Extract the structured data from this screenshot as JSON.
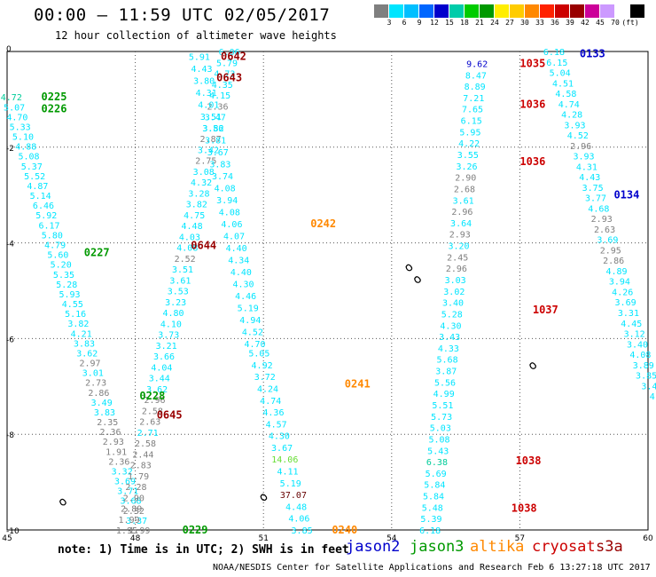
{
  "header": {
    "title": "00:00 – 11:59 UTC 02/05/2017",
    "subtitle": "12 hour collection of altimeter wave heights"
  },
  "color_scale": {
    "colors": [
      "#7f7f7f",
      "#00e5ff",
      "#00bfff",
      "#0066ff",
      "#0000cc",
      "#00ccaa",
      "#00cc00",
      "#009900",
      "#ffee00",
      "#ffcc00",
      "#ff8800",
      "#ff2200",
      "#cc0000",
      "#990000",
      "#cc0099",
      "#cc99ff",
      "#ffffff",
      "#000000"
    ],
    "labels": [
      "3",
      "6",
      "9",
      "12",
      "15",
      "18",
      "21",
      "24",
      "27",
      "30",
      "33",
      "36",
      "39",
      "42",
      "45",
      "70",
      "(ft)"
    ]
  },
  "axes": {
    "x_ticks": [
      "45",
      "48",
      "51",
      "54",
      "57",
      "60"
    ],
    "y_ticks": [
      "0",
      "-2",
      "-4",
      "-6",
      "-8",
      "-10"
    ]
  },
  "legend": [
    {
      "name": "jason2",
      "color": "#0000cc"
    },
    {
      "name": "jason3",
      "color": "#009900"
    },
    {
      "name": "altika",
      "color": "#ff8800"
    },
    {
      "name": "cryosat",
      "color": "#cc0000"
    },
    {
      "name": "s3a",
      "color": "#990000"
    }
  ],
  "note": "note: 1) Time is in UTC; 2) SWH is in feet",
  "credit": "NOAA/NESDIS Center for Satellite Applications and Research   Feb  6 13:27:18 UTC 2017",
  "time_labels": [
    {
      "text": "0225",
      "lon": 45.8,
      "lat": -0.95,
      "color": "#009900"
    },
    {
      "text": "0226",
      "lon": 45.8,
      "lat": -1.2,
      "color": "#009900"
    },
    {
      "text": "0227",
      "lon": 46.8,
      "lat": -4.2,
      "color": "#009900"
    },
    {
      "text": "0228",
      "lon": 48.1,
      "lat": -7.2,
      "color": "#009900"
    },
    {
      "text": "0229",
      "lon": 49.1,
      "lat": -10.0,
      "color": "#009900"
    },
    {
      "text": "0642",
      "lon": 50.0,
      "lat": -0.1,
      "color": "#990000"
    },
    {
      "text": "0643",
      "lon": 49.9,
      "lat": -0.55,
      "color": "#990000"
    },
    {
      "text": "0644",
      "lon": 49.3,
      "lat": -4.05,
      "color": "#990000"
    },
    {
      "text": "0645",
      "lon": 48.5,
      "lat": -7.6,
      "color": "#990000"
    },
    {
      "text": "0242",
      "lon": 52.1,
      "lat": -3.6,
      "color": "#ff8800"
    },
    {
      "text": "0241",
      "lon": 52.9,
      "lat": -6.95,
      "color": "#ff8800"
    },
    {
      "text": "0240",
      "lon": 52.6,
      "lat": -10.0,
      "color": "#ff8800"
    },
    {
      "text": "1035",
      "lon": 57.0,
      "lat": -0.25,
      "color": "#cc0000"
    },
    {
      "text": "1036",
      "lon": 57.0,
      "lat": -1.1,
      "color": "#cc0000"
    },
    {
      "text": "1036",
      "lon": 57.0,
      "lat": -2.3,
      "color": "#cc0000"
    },
    {
      "text": "1037",
      "lon": 57.3,
      "lat": -5.4,
      "color": "#cc0000"
    },
    {
      "text": "1038",
      "lon": 56.9,
      "lat": -8.55,
      "color": "#cc0000"
    },
    {
      "text": "1038",
      "lon": 56.8,
      "lat": -9.55,
      "color": "#cc0000"
    },
    {
      "text": "0133",
      "lon": 58.4,
      "lat": -0.05,
      "color": "#0000cc"
    },
    {
      "text": "0134",
      "lon": 59.2,
      "lat": -3.0,
      "color": "#0000cc"
    }
  ],
  "tracks": [
    {
      "name": "jason3-track",
      "start": [
        45.1,
        -0.95
      ],
      "end": [
        48.1,
        -10.0
      ],
      "rows": [
        {
          "v": "4.72",
          "c": "#00cc99"
        },
        {
          "v": "5.07",
          "c": "#00e5ff"
        },
        {
          "v": "4.70",
          "c": "#00e5ff"
        },
        {
          "v": "5.33",
          "c": "#00e5ff"
        },
        {
          "v": "5.10",
          "c": "#00e5ff"
        },
        {
          "v": "4.88",
          "c": "#00e5ff"
        },
        {
          "v": "5.08",
          "c": "#00e5ff"
        },
        {
          "v": "5.37",
          "c": "#00e5ff"
        },
        {
          "v": "5.52",
          "c": "#00e5ff"
        },
        {
          "v": "4.87",
          "c": "#00e5ff"
        },
        {
          "v": "5.14",
          "c": "#00e5ff"
        },
        {
          "v": "6.46",
          "c": "#00e5ff"
        },
        {
          "v": "5.92",
          "c": "#00e5ff"
        },
        {
          "v": "6.17",
          "c": "#00e5ff"
        },
        {
          "v": "5.80",
          "c": "#00e5ff"
        },
        {
          "v": "4.79",
          "c": "#00e5ff"
        },
        {
          "v": "5.60",
          "c": "#00e5ff"
        },
        {
          "v": "5.20",
          "c": "#00e5ff"
        },
        {
          "v": "5.35",
          "c": "#00e5ff"
        },
        {
          "v": "5.28",
          "c": "#00e5ff"
        },
        {
          "v": "5.93",
          "c": "#00e5ff"
        },
        {
          "v": "4.55",
          "c": "#00e5ff"
        },
        {
          "v": "5.16",
          "c": "#00e5ff"
        },
        {
          "v": "3.82",
          "c": "#00e5ff"
        },
        {
          "v": "4.21",
          "c": "#00e5ff"
        },
        {
          "v": "3.83",
          "c": "#00e5ff"
        },
        {
          "v": "3.62",
          "c": "#00e5ff"
        },
        {
          "v": "2.97",
          "c": "#7f7f7f"
        },
        {
          "v": "3.01",
          "c": "#00e5ff"
        },
        {
          "v": "2.73",
          "c": "#7f7f7f"
        },
        {
          "v": "2.86",
          "c": "#7f7f7f"
        },
        {
          "v": "3.49",
          "c": "#00e5ff"
        },
        {
          "v": "3.83",
          "c": "#00e5ff"
        },
        {
          "v": "2.35",
          "c": "#7f7f7f"
        },
        {
          "v": "2.36",
          "c": "#7f7f7f"
        },
        {
          "v": "2.93",
          "c": "#7f7f7f"
        },
        {
          "v": "1.91",
          "c": "#7f7f7f"
        },
        {
          "v": "2.36",
          "c": "#7f7f7f"
        },
        {
          "v": "3.32",
          "c": "#00e5ff"
        },
        {
          "v": "3.69",
          "c": "#00e5ff"
        },
        {
          "v": "3.71",
          "c": "#00e5ff"
        },
        {
          "v": "3.68",
          "c": "#00e5ff"
        },
        {
          "v": "2.32",
          "c": "#7f7f7f"
        },
        {
          "v": "3.37",
          "c": "#00e5ff"
        },
        {
          "v": "1.99",
          "c": "#7f7f7f"
        }
      ]
    },
    {
      "name": "cryosat-track",
      "start": [
        50.2,
        0.0
      ],
      "end": [
        47.8,
        -10.0
      ],
      "rows": [
        {
          "v": "6.06",
          "c": "#00e5ff"
        },
        {
          "v": "5.79",
          "c": "#00e5ff"
        },
        {
          "v": "4.73",
          "c": "#00e5ff"
        },
        {
          "v": "4.35",
          "c": "#00e5ff"
        },
        {
          "v": "4.15",
          "c": "#00e5ff"
        },
        {
          "v": "2.36",
          "c": "#7f7f7f"
        },
        {
          "v": "3.47",
          "c": "#00e5ff"
        },
        {
          "v": "3.56",
          "c": "#00e5ff"
        },
        {
          "v": "2.87",
          "c": "#7f7f7f"
        },
        {
          "v": "3.42",
          "c": "#00e5ff"
        },
        {
          "v": "2.75",
          "c": "#7f7f7f"
        },
        {
          "v": "3.08",
          "c": "#00e5ff"
        },
        {
          "v": "4.32",
          "c": "#00e5ff"
        },
        {
          "v": "3.28",
          "c": "#00e5ff"
        },
        {
          "v": "3.82",
          "c": "#00e5ff"
        },
        {
          "v": "4.75",
          "c": "#00e5ff"
        },
        {
          "v": "4.48",
          "c": "#00e5ff"
        },
        {
          "v": "4.03",
          "c": "#00e5ff"
        },
        {
          "v": "4.08",
          "c": "#00e5ff"
        },
        {
          "v": "2.52",
          "c": "#7f7f7f"
        },
        {
          "v": "3.51",
          "c": "#00e5ff"
        },
        {
          "v": "3.61",
          "c": "#00e5ff"
        },
        {
          "v": "3.53",
          "c": "#00e5ff"
        },
        {
          "v": "3.23",
          "c": "#00e5ff"
        },
        {
          "v": "4.80",
          "c": "#00e5ff"
        },
        {
          "v": "4.10",
          "c": "#00e5ff"
        },
        {
          "v": "3.73",
          "c": "#00e5ff"
        },
        {
          "v": "3.21",
          "c": "#00e5ff"
        },
        {
          "v": "3.66",
          "c": "#00e5ff"
        },
        {
          "v": "4.04",
          "c": "#00e5ff"
        },
        {
          "v": "3.44",
          "c": "#00e5ff"
        },
        {
          "v": "3.62",
          "c": "#00e5ff"
        },
        {
          "v": "2.96",
          "c": "#7f7f7f"
        },
        {
          "v": "2.58",
          "c": "#7f7f7f"
        },
        {
          "v": "2.63",
          "c": "#7f7f7f"
        },
        {
          "v": "2.71",
          "c": "#00e5ff"
        },
        {
          "v": "2.58",
          "c": "#7f7f7f"
        },
        {
          "v": "2.44",
          "c": "#7f7f7f"
        },
        {
          "v": "2.83",
          "c": "#7f7f7f"
        },
        {
          "v": "1.79",
          "c": "#7f7f7f"
        },
        {
          "v": "2.28",
          "c": "#7f7f7f"
        },
        {
          "v": "2.90",
          "c": "#7f7f7f"
        },
        {
          "v": "2.89",
          "c": "#7f7f7f"
        },
        {
          "v": "1.99",
          "c": "#7f7f7f"
        },
        {
          "v": "1.95",
          "c": "#7f7f7f"
        }
      ]
    },
    {
      "name": "s3a-track",
      "start": [
        49.5,
        -0.1
      ],
      "end": [
        50.8,
        -6.1
      ],
      "rows": [
        {
          "v": "5.91",
          "c": "#00e5ff"
        },
        {
          "v": "4.43",
          "c": "#00e5ff"
        },
        {
          "v": "3.80",
          "c": "#00e5ff"
        },
        {
          "v": "4.31",
          "c": "#00e5ff"
        },
        {
          "v": "4.01",
          "c": "#00e5ff"
        },
        {
          "v": "3.51",
          "c": "#00e5ff"
        },
        {
          "v": "3.82",
          "c": "#00e5ff"
        },
        {
          "v": "3.81",
          "c": "#00e5ff"
        },
        {
          "v": "3.67",
          "c": "#00e5ff"
        },
        {
          "v": "3.83",
          "c": "#00e5ff"
        },
        {
          "v": "3.74",
          "c": "#00e5ff"
        },
        {
          "v": "4.08",
          "c": "#00e5ff"
        },
        {
          "v": "3.94",
          "c": "#00e5ff"
        },
        {
          "v": "4.08",
          "c": "#00e5ff"
        },
        {
          "v": "4.06",
          "c": "#00e5ff"
        },
        {
          "v": "4.07",
          "c": "#00e5ff"
        },
        {
          "v": "4.40",
          "c": "#00e5ff"
        },
        {
          "v": "4.34",
          "c": "#00e5ff"
        },
        {
          "v": "4.40",
          "c": "#00e5ff"
        },
        {
          "v": "4.30",
          "c": "#00e5ff"
        },
        {
          "v": "4.46",
          "c": "#00e5ff"
        },
        {
          "v": "5.19",
          "c": "#00e5ff"
        },
        {
          "v": "4.94",
          "c": "#00e5ff"
        },
        {
          "v": "4.52",
          "c": "#00e5ff"
        },
        {
          "v": "4.70",
          "c": "#00e5ff"
        }
      ]
    },
    {
      "name": "altika-track",
      "start": [
        50.9,
        -6.3
      ],
      "end": [
        51.9,
        -10.0
      ],
      "rows": [
        {
          "v": "5.05",
          "c": "#00e5ff"
        },
        {
          "v": "4.92",
          "c": "#00e5ff"
        },
        {
          "v": "3.72",
          "c": "#00e5ff"
        },
        {
          "v": "4.24",
          "c": "#00e5ff"
        },
        {
          "v": "4.74",
          "c": "#00e5ff"
        },
        {
          "v": "4.36",
          "c": "#00e5ff"
        },
        {
          "v": "4.57",
          "c": "#00e5ff"
        },
        {
          "v": "4.30",
          "c": "#00e5ff"
        },
        {
          "v": "3.67",
          "c": "#00e5ff"
        },
        {
          "v": "14.06",
          "c": "#66dd33"
        },
        {
          "v": "4.11",
          "c": "#00e5ff"
        },
        {
          "v": "5.19",
          "c": "#00e5ff"
        },
        {
          "v": "37.07",
          "c": "#660000"
        },
        {
          "v": "4.48",
          "c": "#00e5ff"
        },
        {
          "v": "4.06",
          "c": "#00e5ff"
        },
        {
          "v": "3.85",
          "c": "#00e5ff"
        }
      ]
    },
    {
      "name": "cryosat-east-track",
      "start": [
        56.0,
        -0.25
      ],
      "end": [
        54.9,
        -10.0
      ],
      "rows": [
        {
          "v": "9.62",
          "c": "#0000cc"
        },
        {
          "v": "8.47",
          "c": "#00e5ff"
        },
        {
          "v": "8.89",
          "c": "#00e5ff"
        },
        {
          "v": "7.21",
          "c": "#00e5ff"
        },
        {
          "v": "7.65",
          "c": "#00e5ff"
        },
        {
          "v": "6.15",
          "c": "#00e5ff"
        },
        {
          "v": "5.95",
          "c": "#00e5ff"
        },
        {
          "v": "4.22",
          "c": "#00e5ff"
        },
        {
          "v": "3.55",
          "c": "#00e5ff"
        },
        {
          "v": "3.26",
          "c": "#00e5ff"
        },
        {
          "v": "2.90",
          "c": "#7f7f7f"
        },
        {
          "v": "2.68",
          "c": "#7f7f7f"
        },
        {
          "v": "3.61",
          "c": "#00e5ff"
        },
        {
          "v": "2.96",
          "c": "#7f7f7f"
        },
        {
          "v": "3.64",
          "c": "#00e5ff"
        },
        {
          "v": "2.93",
          "c": "#7f7f7f"
        },
        {
          "v": "3.20",
          "c": "#00e5ff"
        },
        {
          "v": "2.45",
          "c": "#7f7f7f"
        },
        {
          "v": "2.96",
          "c": "#7f7f7f"
        },
        {
          "v": "3.03",
          "c": "#00e5ff"
        },
        {
          "v": "3.02",
          "c": "#00e5ff"
        },
        {
          "v": "3.40",
          "c": "#00e5ff"
        },
        {
          "v": "5.28",
          "c": "#00e5ff"
        },
        {
          "v": "4.30",
          "c": "#00e5ff"
        },
        {
          "v": "3.43",
          "c": "#00e5ff"
        },
        {
          "v": "4.33",
          "c": "#00e5ff"
        },
        {
          "v": "5.68",
          "c": "#00e5ff"
        },
        {
          "v": "3.87",
          "c": "#00e5ff"
        },
        {
          "v": "5.56",
          "c": "#00e5ff"
        },
        {
          "v": "4.99",
          "c": "#00e5ff"
        },
        {
          "v": "5.51",
          "c": "#00e5ff"
        },
        {
          "v": "5.73",
          "c": "#00e5ff"
        },
        {
          "v": "5.03",
          "c": "#00e5ff"
        },
        {
          "v": "5.08",
          "c": "#00e5ff"
        },
        {
          "v": "5.43",
          "c": "#00e5ff"
        },
        {
          "v": "6.38",
          "c": "#00cc99"
        },
        {
          "v": "5.69",
          "c": "#00e5ff"
        },
        {
          "v": "5.84",
          "c": "#00e5ff"
        },
        {
          "v": "5.84",
          "c": "#00e5ff"
        },
        {
          "v": "5.48",
          "c": "#00e5ff"
        },
        {
          "v": "5.39",
          "c": "#00e5ff"
        },
        {
          "v": "6.18",
          "c": "#00e5ff"
        }
      ]
    },
    {
      "name": "jason2-track",
      "start": [
        57.8,
        0.0
      ],
      "end": [
        60.1,
        -7.2
      ],
      "rows": [
        {
          "v": "6.18",
          "c": "#00e5ff"
        },
        {
          "v": "6.15",
          "c": "#00e5ff"
        },
        {
          "v": "5.04",
          "c": "#00e5ff"
        },
        {
          "v": "4.51",
          "c": "#00e5ff"
        },
        {
          "v": "4.58",
          "c": "#00e5ff"
        },
        {
          "v": "4.74",
          "c": "#00e5ff"
        },
        {
          "v": "4.28",
          "c": "#00e5ff"
        },
        {
          "v": "3.93",
          "c": "#00e5ff"
        },
        {
          "v": "4.52",
          "c": "#00e5ff"
        },
        {
          "v": "2.96",
          "c": "#7f7f7f"
        },
        {
          "v": "3.93",
          "c": "#00e5ff"
        },
        {
          "v": "4.31",
          "c": "#00e5ff"
        },
        {
          "v": "4.43",
          "c": "#00e5ff"
        },
        {
          "v": "3.75",
          "c": "#00e5ff"
        },
        {
          "v": "3.77",
          "c": "#00e5ff"
        },
        {
          "v": "4.68",
          "c": "#00e5ff"
        },
        {
          "v": "2.93",
          "c": "#7f7f7f"
        },
        {
          "v": "2.63",
          "c": "#7f7f7f"
        },
        {
          "v": "3.69",
          "c": "#00e5ff"
        },
        {
          "v": "2.95",
          "c": "#7f7f7f"
        },
        {
          "v": "2.86",
          "c": "#7f7f7f"
        },
        {
          "v": "4.89",
          "c": "#00e5ff"
        },
        {
          "v": "3.94",
          "c": "#00e5ff"
        },
        {
          "v": "4.26",
          "c": "#00e5ff"
        },
        {
          "v": "3.69",
          "c": "#00e5ff"
        },
        {
          "v": "3.31",
          "c": "#00e5ff"
        },
        {
          "v": "4.45",
          "c": "#00e5ff"
        },
        {
          "v": "3.12",
          "c": "#00e5ff"
        },
        {
          "v": "3.40",
          "c": "#00e5ff"
        },
        {
          "v": "4.08",
          "c": "#00e5ff"
        },
        {
          "v": "3.89",
          "c": "#00e5ff"
        },
        {
          "v": "3.85",
          "c": "#00e5ff"
        },
        {
          "v": "3.4",
          "c": "#00e5ff"
        },
        {
          "v": "4",
          "c": "#00e5ff"
        }
      ]
    }
  ]
}
